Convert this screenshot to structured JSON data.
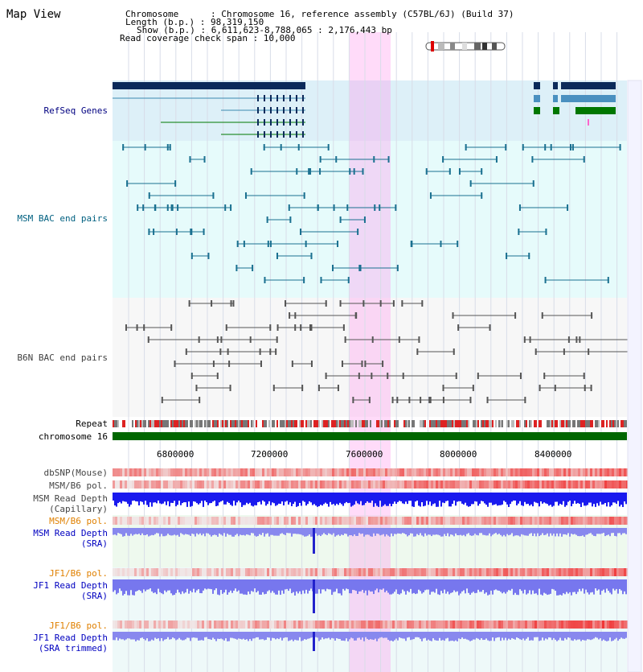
{
  "title": "Map View",
  "header": {
    "chromosome": "Chromosome      : Chromosome 16, reference assembly (C57BL/6J) (Build 37)",
    "length": "Length (b.p.) : 98,319,150",
    "show": "Show (b.p.) : 6,611,623-8,788,065 : 2,176,443 bp",
    "coverage": "Read coverage check span : 10,000"
  },
  "tracks": {
    "refseq": "RefSeq Genes",
    "msm_bac": "MSM BAC end pairs",
    "b6n_bac": "B6N BAC end pairs",
    "repeat": "Repeat",
    "chromosome": "chromosome 16",
    "dbsnp": "dbSNP(Mouse)",
    "msm_pol1": "MSM/B6 pol.",
    "msm_depth_cap_1": "MSM Read Depth",
    "msm_depth_cap_2": "(Capillary)",
    "msm_pol2": "MSM/B6 pol.",
    "msm_depth_sra_1": "MSM Read Depth",
    "msm_depth_sra_2": "(SRA)",
    "jf1_pol1": "JF1/B6 pol.",
    "jf1_depth_1": "JF1 Read Depth",
    "jf1_depth_2": "(SRA)",
    "jf1_pol2": "JF1/B6 pol.",
    "jf1_trim_1": "JF1 Read Depth",
    "jf1_trim_2": "(SRA trimmed)"
  },
  "axis_ticks": [
    "6800000",
    "7200000",
    "7600000",
    "8000000",
    "8400000"
  ],
  "colors": {
    "refseq_label": "#000080",
    "msm_label": "#006080",
    "b6n_label": "#404040",
    "orange_label": "#e08000",
    "blue_label": "#0000c0",
    "highlight": "#ff99ee",
    "chrom_bar": "#006600"
  }
}
